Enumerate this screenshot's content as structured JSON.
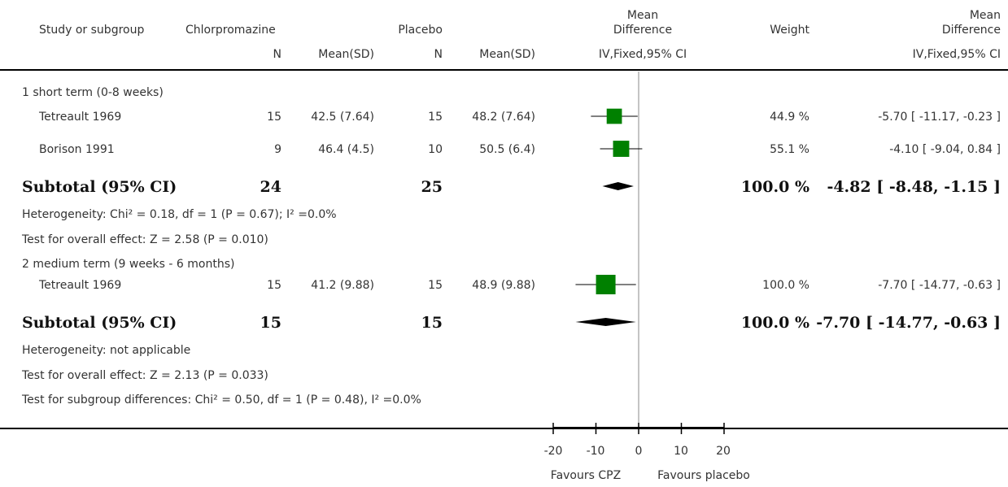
{
  "header": {
    "study": "Study or subgroup",
    "group1": "Chlorpromazine",
    "group2": "Placebo",
    "md_line1": "Mean",
    "md_line2": "Difference",
    "weight": "Weight",
    "md2_line1": "Mean",
    "md2_line2": "Difference",
    "n1": "N",
    "mean1": "Mean(SD)",
    "n2": "N",
    "mean2": "Mean(SD)",
    "method": "IV,Fixed,95% CI",
    "method2": "IV,Fixed,95% CI"
  },
  "rows": {
    "g1_title": "1 short term (0-8 weeks)",
    "s1": {
      "name": "Tetreault 1969",
      "n1": "15",
      "m1": "42.5 (7.64)",
      "n2": "15",
      "m2": "48.2 (7.64)",
      "weight": "44.9 %",
      "ci": "-5.70 [ -11.17, -0.23 ]"
    },
    "s2": {
      "name": "Borison 1991",
      "n1": "9",
      "m1": "46.4 (4.5)",
      "n2": "10",
      "m2": "50.5 (6.4)",
      "weight": "55.1 %",
      "ci": "-4.10 [ -9.04, 0.84 ]"
    },
    "sub1": {
      "label": "Subtotal (95% CI)",
      "n1": "24",
      "n2": "25",
      "weight": "100.0 %",
      "ci": "-4.82 [ -8.48, -1.15 ]"
    },
    "het1": "Heterogeneity: Chi² = 0.18, df = 1 (P = 0.67); I² =0.0%",
    "test1": "Test for overall effect: Z = 2.58 (P = 0.010)",
    "g2_title": "2 medium term (9 weeks - 6 months)",
    "s3": {
      "name": "Tetreault 1969",
      "n1": "15",
      "m1": "41.2 (9.88)",
      "n2": "15",
      "m2": "48.9 (9.88)",
      "weight": "100.0 %",
      "ci": "-7.70 [ -14.77, -0.63 ]"
    },
    "sub2": {
      "label": "Subtotal (95% CI)",
      "n1": "15",
      "n2": "15",
      "weight": "100.0 %",
      "ci": "-7.70 [ -14.77, -0.63 ]"
    },
    "het2": "Heterogeneity: not applicable",
    "test2": "Test for overall effect: Z = 2.13 (P = 0.033)",
    "subgroup_test": "Test for subgroup differences: Chi² = 0.50, df = 1 (P = 0.48), I² =0.0%"
  },
  "axis": {
    "ticks": [
      "-20",
      "-10",
      "0",
      "10",
      "20"
    ],
    "left_label": "Favours CPZ",
    "right_label": "Favours placebo"
  },
  "chart_data": {
    "type": "forest",
    "xlim": [
      -20,
      20
    ],
    "marker_color": "#008000",
    "studies": [
      {
        "name": "Tetreault 1969",
        "subgroup": "1 short term (0-8 weeks)",
        "md": -5.7,
        "lo": -11.17,
        "hi": -0.23,
        "weight": 44.9
      },
      {
        "name": "Borison 1991",
        "subgroup": "1 short term (0-8 weeks)",
        "md": -4.1,
        "lo": -9.04,
        "hi": 0.84,
        "weight": 55.1
      },
      {
        "name": "Tetreault 1969",
        "subgroup": "2 medium term (9 weeks - 6 months)",
        "md": -7.7,
        "lo": -14.77,
        "hi": -0.63,
        "weight": 100.0
      }
    ],
    "subtotals": [
      {
        "subgroup": "1 short term (0-8 weeks)",
        "md": -4.82,
        "lo": -8.48,
        "hi": -1.15
      },
      {
        "subgroup": "2 medium term (9 weeks - 6 months)",
        "md": -7.7,
        "lo": -14.77,
        "hi": -0.63
      }
    ]
  }
}
